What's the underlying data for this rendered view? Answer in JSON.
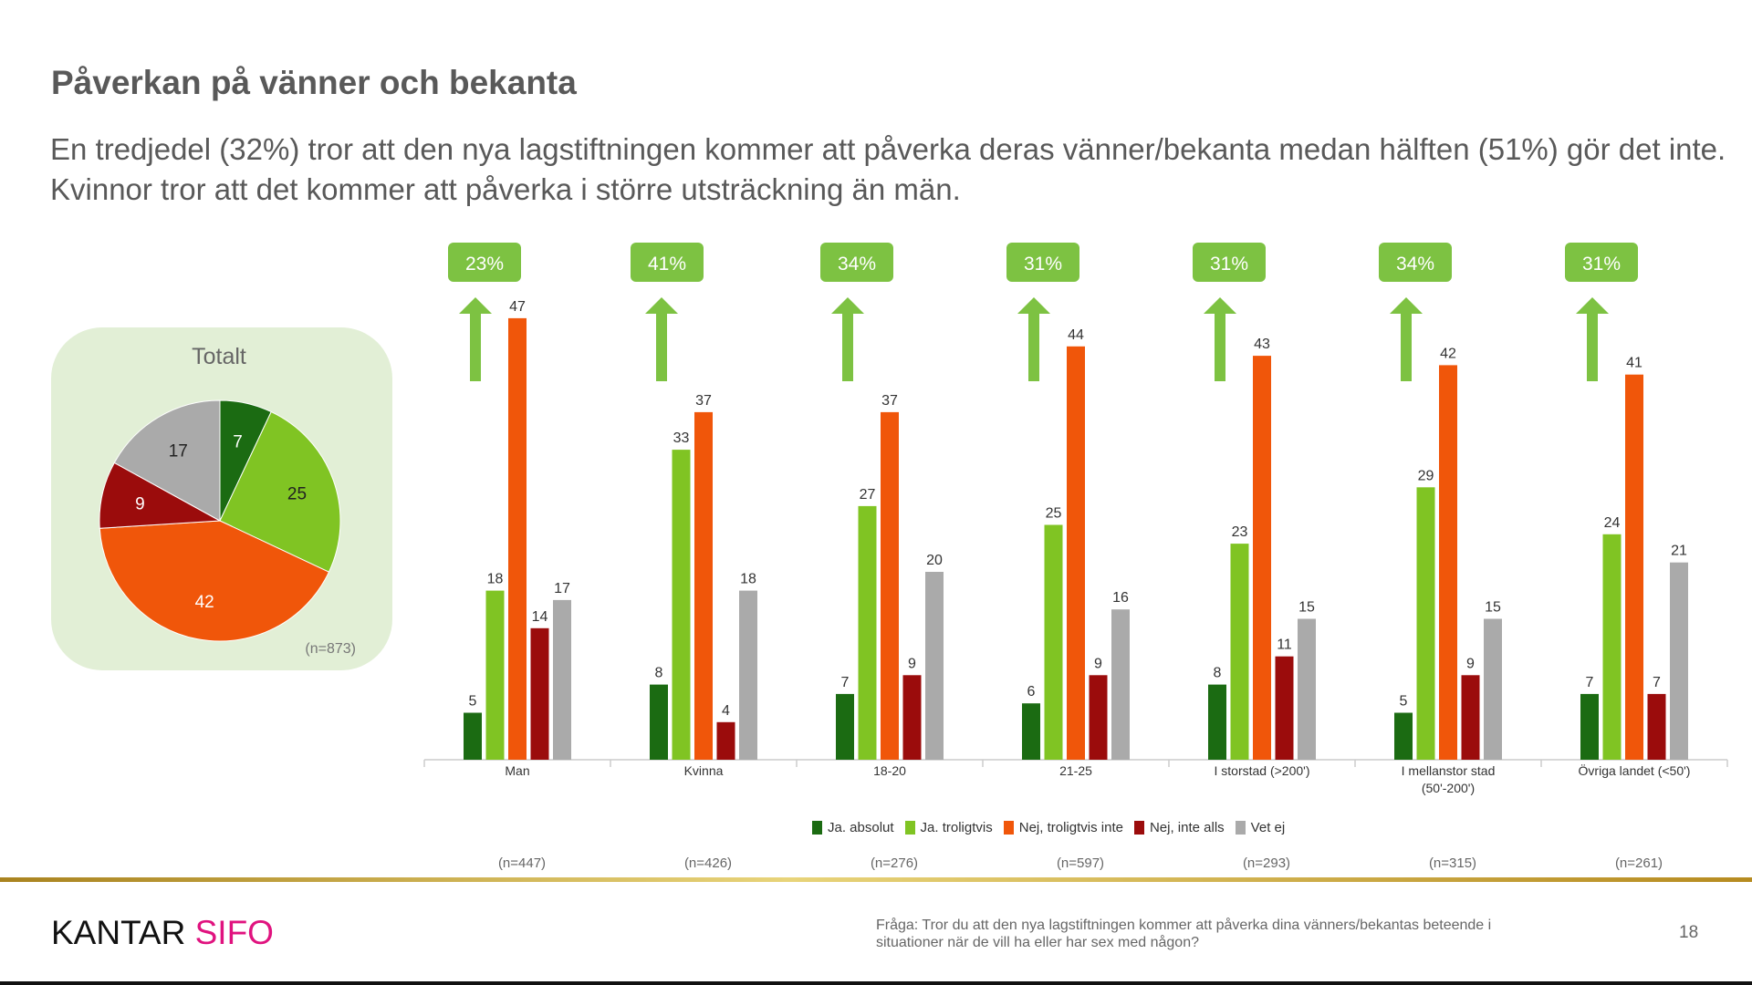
{
  "header": {
    "title": "Påverkan på vänner och bekanta",
    "subtitle": "En tredjedel (32%) tror att den nya lagstiftningen kommer att påverka deras vänner/bekanta medan hälften (51%) gör det inte. Kvinnor tror att det kommer att påverka i större utsträckning än män."
  },
  "colors": {
    "ja_absolut": "#1b6b12",
    "ja_troligtvis": "#80c423",
    "nej_troligtvis_inte": "#f0560a",
    "nej_inte_alls": "#9b0c0c",
    "vet_ej": "#aaaaaa",
    "badge": "#7dc242",
    "pie_box": "#e2efd6"
  },
  "chart_data": [
    {
      "type": "pie",
      "title": "Totalt",
      "note": "(n=873)",
      "labels": [
        "Ja. absolut",
        "Ja. troligtvis",
        "Nej, troligtvis inte",
        "Nej, inte alls",
        "Vet ej"
      ],
      "values": [
        7,
        25,
        42,
        9,
        17
      ]
    },
    {
      "type": "bar",
      "categories": [
        "Man",
        "Kvinna",
        "18-20",
        "21-25",
        "I storstad (>200')",
        "I mellanstor stad (50'-200')",
        "Övriga landet (<50')"
      ],
      "sample_sizes": [
        "(n=447)",
        "(n=426)",
        "(n=276)",
        "(n=597)",
        "(n=293)",
        "(n=315)",
        "(n=261)"
      ],
      "badges": [
        "23%",
        "41%",
        "34%",
        "31%",
        "31%",
        "34%",
        "31%"
      ],
      "legend_position": "bottom",
      "grid": false,
      "ylim": [
        0,
        50
      ],
      "series": [
        {
          "name": "Ja. absolut",
          "values": [
            5,
            8,
            7,
            6,
            8,
            5,
            7
          ]
        },
        {
          "name": "Ja. troligtvis",
          "values": [
            18,
            33,
            27,
            25,
            23,
            29,
            24
          ]
        },
        {
          "name": "Nej, troligtvis inte",
          "values": [
            47,
            37,
            37,
            44,
            43,
            42,
            41
          ]
        },
        {
          "name": "Nej, inte alls",
          "values": [
            14,
            4,
            9,
            9,
            11,
            9,
            7
          ]
        },
        {
          "name": "Vet ej",
          "values": [
            17,
            18,
            20,
            16,
            15,
            15,
            21
          ]
        }
      ]
    }
  ],
  "footer": {
    "logo_left": "KANTAR",
    "logo_right": "SIFO",
    "question": "Fråga: Tror du att den nya lagstiftningen kommer att påverka dina vänners/bekantas beteende i situationer när de vill ha eller har sex med någon?",
    "page_number": "18"
  }
}
